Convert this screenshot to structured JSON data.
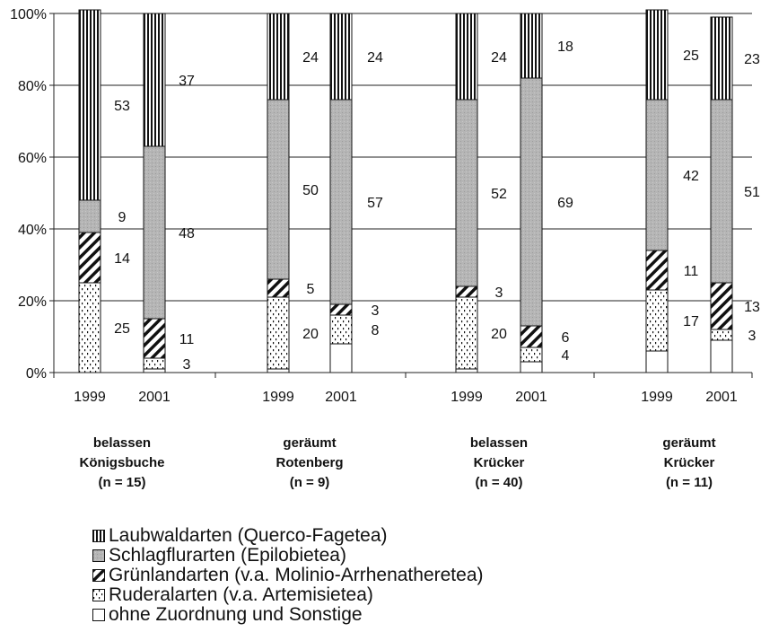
{
  "chart_data": {
    "type": "bar",
    "stacked": true,
    "percent_stacked": true,
    "y_axis": {
      "min": 0,
      "max": 100,
      "ticks": [
        "0%",
        "20%",
        "40%",
        "60%",
        "80%",
        "100%"
      ]
    },
    "grid": true,
    "groups": [
      {
        "lines": [
          "belassen",
          "Königsbuche",
          "(n = 15)"
        ]
      },
      {
        "lines": [
          "geräumt",
          "Rotenberg",
          "(n = 9)"
        ]
      },
      {
        "lines": [
          "belassen",
          "Krücker",
          "(n = 40)"
        ]
      },
      {
        "lines": [
          "geräumt",
          "Krücker",
          "(n = 11)"
        ]
      }
    ],
    "categories": [
      "1999",
      "2001",
      "1999",
      "2001",
      "1999",
      "2001",
      "1999",
      "2001"
    ],
    "series": [
      {
        "name": "Laubwaldarten (Querco-Fagetea)",
        "key": "laubwald",
        "values": [
          53,
          37,
          24,
          24,
          24,
          18,
          25,
          23
        ],
        "labels": [
          "53",
          "37",
          "24",
          "24",
          "24",
          "18",
          "25",
          "23"
        ]
      },
      {
        "name": "Schlagflurarten (Epilobietea)",
        "key": "schlagflur",
        "values": [
          9,
          48,
          50,
          57,
          52,
          69,
          42,
          51
        ],
        "labels": [
          "9",
          "48",
          "50",
          "57",
          "52",
          "69",
          "42",
          "51"
        ]
      },
      {
        "name": "Grünlandarten (v.a. Molinio-Arrhenatheretea)",
        "key": "gruenland",
        "values": [
          14,
          11,
          5,
          3,
          3,
          6,
          11,
          13
        ],
        "labels": [
          "14",
          "11",
          "5",
          "3",
          "3",
          "6",
          "11",
          "13"
        ]
      },
      {
        "name": "Ruderalarten (v.a. Artemisietea)",
        "key": "ruderal",
        "values": [
          25,
          3,
          20,
          8,
          20,
          4,
          17,
          3
        ],
        "labels": [
          "25",
          "3",
          "20",
          "8",
          "20",
          "4",
          "17",
          "3"
        ]
      },
      {
        "name": "ohne Zuordnung und Sonstige",
        "key": "sonstige",
        "values": [
          0,
          1,
          1,
          8,
          1,
          3,
          6,
          9
        ],
        "labels": [
          "",
          "",
          "",
          "",
          "",
          "",
          "",
          ""
        ]
      }
    ],
    "legend_position": "bottom"
  }
}
